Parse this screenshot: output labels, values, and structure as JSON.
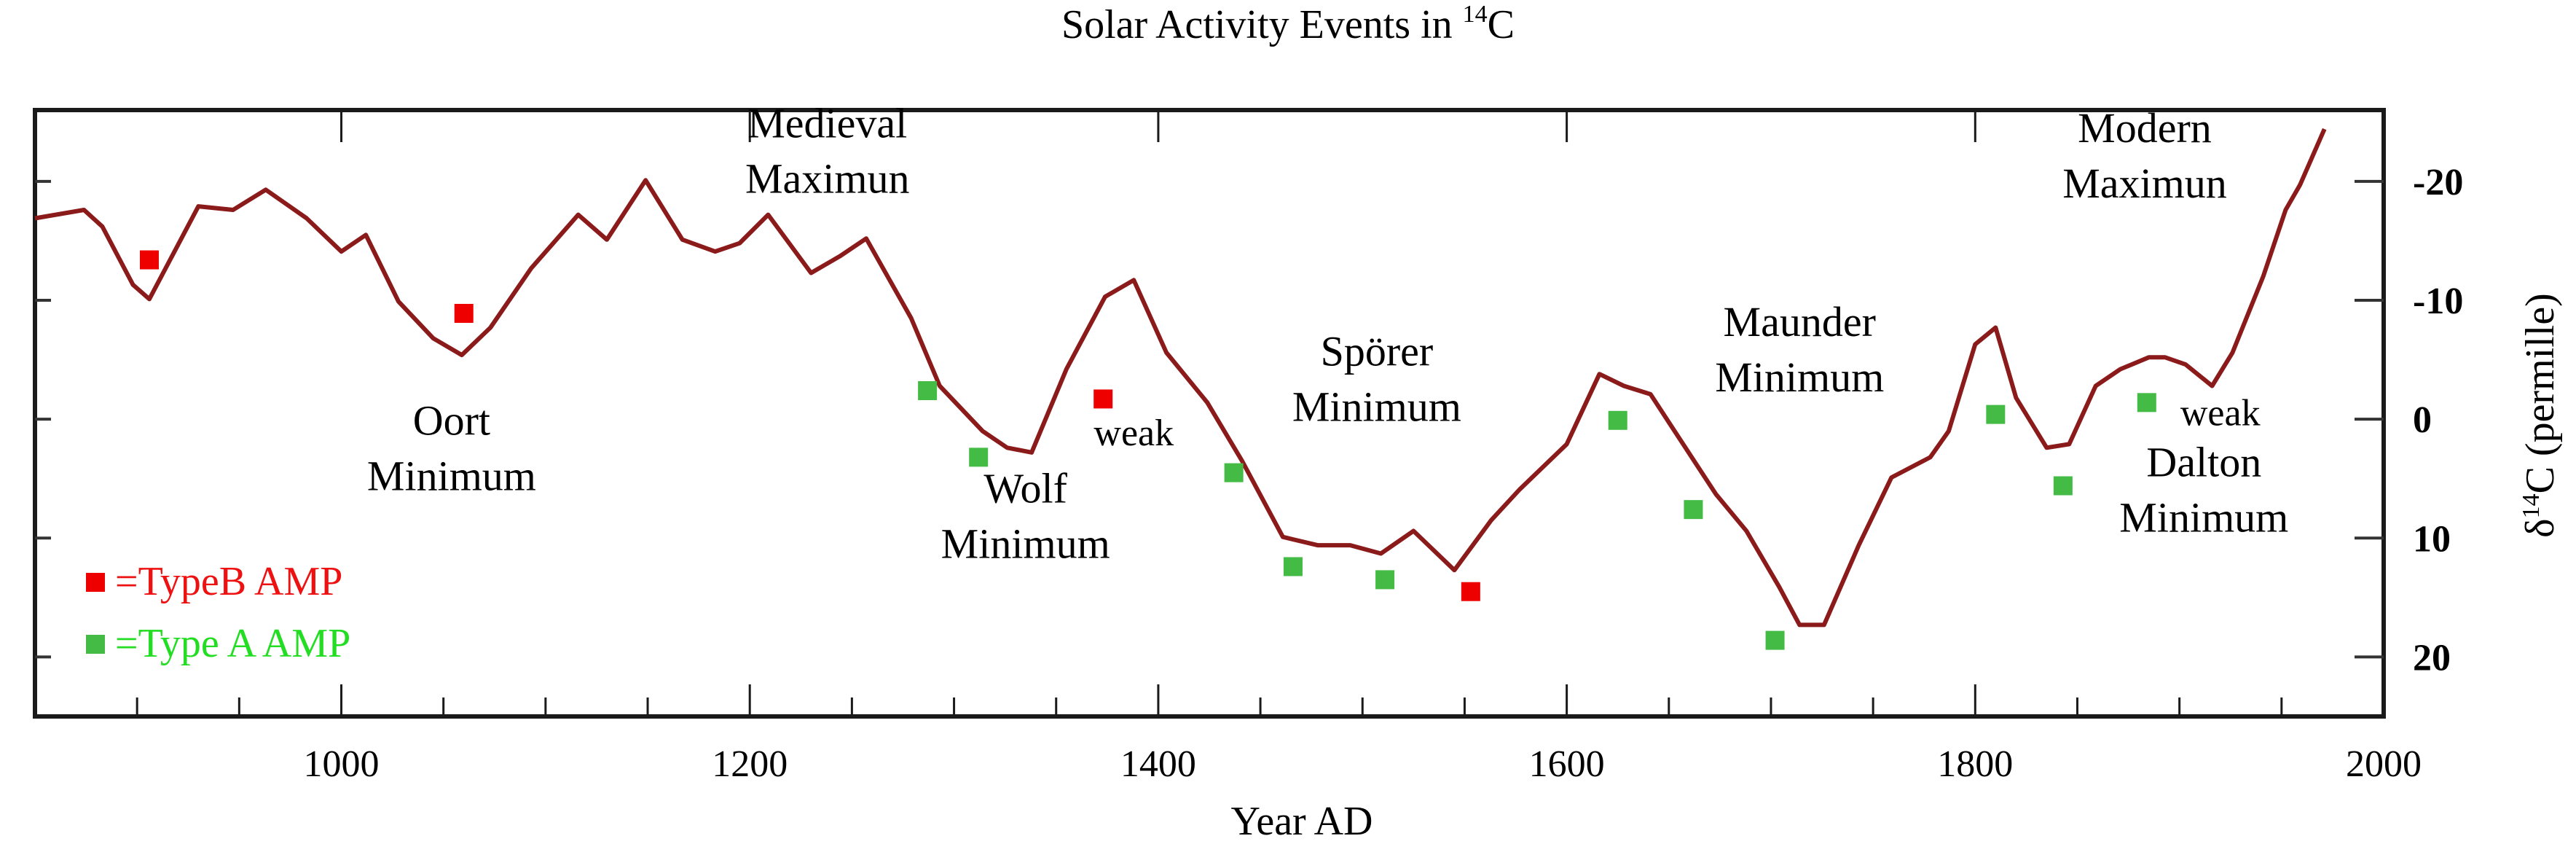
{
  "chart_data": {
    "type": "line",
    "title": "Solar Activity Events in ",
    "title_superscript": "14",
    "title_suffix": "C",
    "xlabel": "Year AD",
    "ylabel_prefix": "δ",
    "ylabel_superscript": "14",
    "ylabel_suffix": "C (permille)",
    "xlim": [
      850,
      2000
    ],
    "ylim": [
      25,
      -26
    ],
    "y_inverted": true,
    "y_axis_side": "right",
    "grid": false,
    "x_ticks_major": [
      1000,
      1200,
      1400,
      1600,
      1800,
      2000
    ],
    "x_tick_labels": [
      "1000",
      "1200",
      "1400",
      "1600",
      "1800",
      "2000"
    ],
    "x_ticks_minor": [
      900,
      950,
      1050,
      1100,
      1150,
      1250,
      1300,
      1350,
      1450,
      1500,
      1550,
      1650,
      1700,
      1750,
      1850,
      1900,
      1950
    ],
    "y_ticks": [
      -20,
      -10,
      0,
      10,
      20
    ],
    "y_tick_labels": [
      "-20",
      "-10",
      "0",
      "10",
      "20"
    ],
    "colors": {
      "line": "#8b1a1a",
      "type_b": "#ee0000",
      "type_a": "#44bb44",
      "type_b_text": "#ee1111",
      "type_a_text": "#22dd22"
    },
    "series": [
      {
        "name": "delta14C",
        "x": [
          850,
          874,
          883,
          898,
          906,
          914,
          930,
          947,
          963,
          983,
          1000,
          1012,
          1028,
          1045,
          1059,
          1073,
          1093,
          1116,
          1130,
          1149,
          1167,
          1183,
          1195,
          1209,
          1230,
          1244,
          1257,
          1279,
          1293,
          1314,
          1326,
          1338,
          1355,
          1374,
          1388,
          1404,
          1424,
          1441,
          1461,
          1478,
          1494,
          1509,
          1525,
          1545,
          1563,
          1577,
          1600,
          1616,
          1628,
          1641,
          1657,
          1673,
          1688,
          1704,
          1714,
          1726,
          1743,
          1759,
          1778,
          1787,
          1800,
          1810,
          1820,
          1835,
          1846,
          1859,
          1871,
          1885,
          1893,
          1903,
          1916,
          1926,
          1941,
          1952,
          1959,
          1971
        ],
        "y": [
          -16.9,
          -17.6,
          -16.2,
          -11.3,
          -10.1,
          -12.7,
          -17.9,
          -17.6,
          -19.3,
          -16.9,
          -14.1,
          -15.5,
          -9.9,
          -6.8,
          -5.4,
          -7.7,
          -12.7,
          -17.2,
          -15.1,
          -20.1,
          -15.1,
          -14.1,
          -14.8,
          -17.2,
          -12.3,
          -13.7,
          -15.2,
          -8.5,
          -2.8,
          1.0,
          2.4,
          2.8,
          -4.2,
          -10.3,
          -11.7,
          -5.6,
          -1.4,
          3.5,
          9.9,
          10.6,
          10.6,
          11.3,
          9.4,
          12.7,
          8.5,
          5.9,
          2.1,
          -3.8,
          -2.8,
          -2.1,
          2.1,
          6.3,
          9.4,
          14.1,
          17.3,
          17.3,
          10.6,
          4.9,
          3.2,
          1.0,
          -6.3,
          -7.7,
          -1.8,
          2.4,
          2.1,
          -2.8,
          -4.2,
          -5.2,
          -5.2,
          -4.6,
          -2.8,
          -5.6,
          -12.0,
          -17.6,
          -19.7,
          -24.4
        ]
      }
    ],
    "markers": {
      "type_b": [
        {
          "x": 906,
          "y": -13.4
        },
        {
          "x": 1060,
          "y": -8.9
        },
        {
          "x": 1373,
          "y": -1.7
        },
        {
          "x": 1553,
          "y": 14.5
        }
      ],
      "type_a": [
        {
          "x": 1287,
          "y": -2.4
        },
        {
          "x": 1312,
          "y": 3.2
        },
        {
          "x": 1437,
          "y": 4.5
        },
        {
          "x": 1466,
          "y": 12.4
        },
        {
          "x": 1511,
          "y": 13.5
        },
        {
          "x": 1625,
          "y": 0.1
        },
        {
          "x": 1662,
          "y": 7.6
        },
        {
          "x": 1702,
          "y": 18.6
        },
        {
          "x": 1810,
          "y": -0.4
        },
        {
          "x": 1843,
          "y": 5.6
        },
        {
          "x": 1884,
          "y": -1.4
        }
      ]
    },
    "legend": {
      "placement": "bottom-left",
      "entries": [
        {
          "key": "type_b",
          "label": "=TypeB AMP"
        },
        {
          "key": "type_a",
          "label": "=Type A AMP"
        }
      ]
    },
    "annotations": [
      {
        "id": "oort",
        "lines": [
          "Oort",
          "Minimum"
        ],
        "x": 1054,
        "y": 1.3,
        "size": "large"
      },
      {
        "id": "medieval",
        "lines": [
          "Medieval",
          "Maximun"
        ],
        "x": 1238,
        "y": -23.7,
        "size": "large"
      },
      {
        "id": "wolf",
        "lines": [
          "Wolf",
          "Minimum"
        ],
        "x": 1335,
        "y": 7.0,
        "size": "large"
      },
      {
        "id": "weak-1",
        "lines": [
          "weak"
        ],
        "x": 1388,
        "y": 2.2,
        "size": "small"
      },
      {
        "id": "sporer",
        "lines": [
          "Spörer",
          "Minimum"
        ],
        "x": 1507,
        "y": -4.5,
        "size": "large"
      },
      {
        "id": "maunder",
        "lines": [
          "Maunder",
          "Minimum"
        ],
        "x": 1714,
        "y": -7.0,
        "size": "large"
      },
      {
        "id": "modern",
        "lines": [
          "Modern",
          "Maximun"
        ],
        "x": 1883,
        "y": -23.3,
        "size": "large"
      },
      {
        "id": "weak-2",
        "lines": [
          "weak"
        ],
        "x": 1920,
        "y": 0.5,
        "size": "small"
      },
      {
        "id": "dalton",
        "lines": [
          "Dalton",
          "Minimum"
        ],
        "x": 1912,
        "y": 4.8,
        "size": "large"
      }
    ]
  }
}
